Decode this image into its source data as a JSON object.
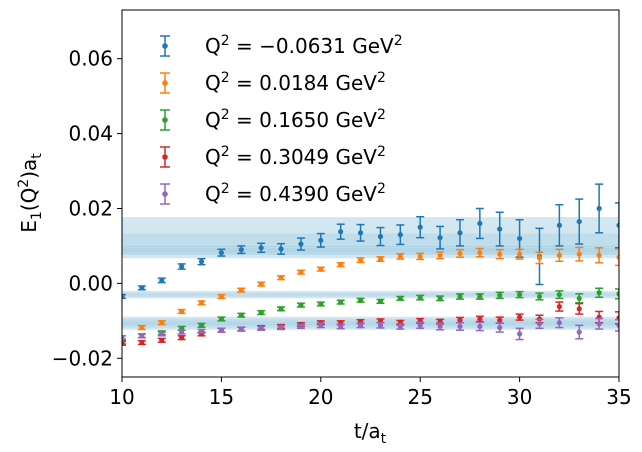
{
  "chart_data": {
    "type": "scatter",
    "title": "",
    "xlabel": "t/a",
    "xlabel_sub": "t",
    "ylabel": "E",
    "ylabel_sub": "1",
    "ylabel_paren": "(Q",
    "ylabel_sup": "2",
    "ylabel_close": ")a",
    "ylabel_sub2": "t",
    "xlim": [
      10,
      35
    ],
    "ylim": [
      -0.025,
      0.073
    ],
    "xticks": [
      10,
      15,
      20,
      25,
      30,
      35
    ],
    "xtick_labels": [
      "10",
      "15",
      "20",
      "25",
      "30",
      "35"
    ],
    "yticks": [
      -0.02,
      0.0,
      0.02,
      0.04,
      0.06
    ],
    "ytick_labels": [
      "−0.02",
      "0.00",
      "0.02",
      "0.04",
      "0.06"
    ],
    "grid": false,
    "legend_position": "top-left",
    "series": [
      {
        "name": "Q² = −0.0631 GeV²",
        "legend_base": "Q",
        "legend_sup": "2",
        "legend_mid": " = −0.0631 GeV",
        "legend_sup2": "2",
        "color": "#1f77b4",
        "band_center": 0.0122,
        "band_halfwidth": 0.0055,
        "band_inner_center": 0.0115,
        "band_inner_halfwidth": 0.0018,
        "x": [
          10,
          11,
          12,
          13,
          14,
          15,
          16,
          17,
          18,
          19,
          20,
          21,
          22,
          23,
          24,
          25,
          26,
          27,
          28,
          29,
          30,
          31,
          32,
          33,
          34,
          35
        ],
        "y": [
          -0.0035,
          -0.0012,
          0.0008,
          0.0045,
          0.0058,
          0.0082,
          0.009,
          0.0095,
          0.0092,
          0.0105,
          0.0115,
          0.0138,
          0.0135,
          0.0125,
          0.013,
          0.015,
          0.0122,
          0.0135,
          0.016,
          0.0145,
          0.012,
          0.0072,
          0.0155,
          0.0165,
          0.02,
          0.0155
        ],
        "err": [
          0.0005,
          0.0005,
          0.0006,
          0.0007,
          0.0008,
          0.0009,
          0.001,
          0.0012,
          0.0014,
          0.0016,
          0.0018,
          0.002,
          0.0022,
          0.0024,
          0.0026,
          0.0028,
          0.003,
          0.0035,
          0.004,
          0.0045,
          0.005,
          0.0075,
          0.0055,
          0.006,
          0.0065,
          0.006
        ]
      },
      {
        "name": "Q² = 0.0184 GeV²",
        "legend_base": "Q",
        "legend_sup": "2",
        "legend_mid": " = 0.0184 GeV",
        "legend_sup2": "2",
        "color": "#ff7f0e",
        "band_center": 0.0088,
        "band_halfwidth": 0.0012,
        "band_inner_center": 0.0088,
        "band_inner_halfwidth": 0.0006,
        "x": [
          10,
          11,
          12,
          13,
          14,
          15,
          16,
          17,
          18,
          19,
          20,
          21,
          22,
          23,
          24,
          25,
          26,
          27,
          28,
          29,
          30,
          31,
          32,
          33,
          34,
          35
        ],
        "y": [
          -0.0155,
          -0.0118,
          -0.0105,
          -0.0075,
          -0.0052,
          -0.0035,
          -0.0018,
          -0.0002,
          0.0015,
          0.003,
          0.0038,
          0.005,
          0.0062,
          0.0065,
          0.0072,
          0.0072,
          0.0075,
          0.008,
          0.0082,
          0.0078,
          0.0078,
          0.0068,
          0.0075,
          0.0078,
          0.0075,
          0.007
        ],
        "err": [
          0.0006,
          0.0005,
          0.0005,
          0.0005,
          0.0005,
          0.0005,
          0.0005,
          0.0005,
          0.0005,
          0.0005,
          0.0005,
          0.0005,
          0.0006,
          0.0006,
          0.0007,
          0.0008,
          0.0009,
          0.001,
          0.0011,
          0.0012,
          0.0013,
          0.0015,
          0.0016,
          0.0018,
          0.002,
          0.0022
        ]
      },
      {
        "name": "Q² = 0.1650 GeV²",
        "legend_base": "Q",
        "legend_sup": "2",
        "legend_mid": " = 0.1650 GeV",
        "legend_sup2": "2",
        "color": "#2ca02c",
        "band_center": -0.003,
        "band_halfwidth": 0.001,
        "band_inner_center": -0.003,
        "band_inner_halfwidth": 0.0005,
        "x": [
          10,
          11,
          12,
          13,
          14,
          15,
          16,
          17,
          18,
          19,
          20,
          21,
          22,
          23,
          24,
          25,
          26,
          27,
          28,
          29,
          30,
          31,
          32,
          33,
          34,
          35
        ],
        "y": [
          -0.0158,
          -0.014,
          -0.0132,
          -0.012,
          -0.0112,
          -0.0095,
          -0.0085,
          -0.0078,
          -0.0068,
          -0.0058,
          -0.0055,
          -0.005,
          -0.0045,
          -0.0048,
          -0.004,
          -0.0038,
          -0.004,
          -0.0035,
          -0.0035,
          -0.0032,
          -0.003,
          -0.0035,
          -0.003,
          -0.004,
          -0.0025,
          -0.0028
        ],
        "err": [
          0.0005,
          0.0005,
          0.0005,
          0.0005,
          0.0005,
          0.0005,
          0.0005,
          0.0005,
          0.0005,
          0.0005,
          0.0005,
          0.0005,
          0.0005,
          0.0005,
          0.0005,
          0.0006,
          0.0006,
          0.0007,
          0.0007,
          0.0008,
          0.0008,
          0.0009,
          0.001,
          0.0012,
          0.0012,
          0.0013
        ]
      },
      {
        "name": "Q² = 0.3049 GeV²",
        "legend_base": "Q",
        "legend_sup": "2",
        "legend_mid": " = 0.3049 GeV",
        "legend_sup2": "2",
        "color": "#d62728",
        "band_center": -0.01,
        "band_halfwidth": 0.0011,
        "band_inner_center": -0.01,
        "band_inner_halfwidth": 0.0005,
        "x": [
          10,
          11,
          12,
          13,
          14,
          15,
          16,
          17,
          18,
          19,
          20,
          21,
          22,
          23,
          24,
          25,
          26,
          27,
          28,
          29,
          30,
          31,
          32,
          33,
          34,
          35
        ],
        "y": [
          -0.016,
          -0.0158,
          -0.0152,
          -0.0145,
          -0.0135,
          -0.0125,
          -0.0122,
          -0.0118,
          -0.0115,
          -0.011,
          -0.0105,
          -0.0105,
          -0.0102,
          -0.01,
          -0.0105,
          -0.01,
          -0.0102,
          -0.0098,
          -0.0095,
          -0.0098,
          -0.009,
          -0.0095,
          -0.0062,
          -0.0068,
          -0.009,
          -0.0092
        ],
        "err": [
          0.0005,
          0.0005,
          0.0005,
          0.0005,
          0.0005,
          0.0005,
          0.0005,
          0.0005,
          0.0005,
          0.0005,
          0.0005,
          0.0005,
          0.0005,
          0.0005,
          0.0006,
          0.0006,
          0.0006,
          0.0007,
          0.0007,
          0.0008,
          0.0008,
          0.001,
          0.0012,
          0.0014,
          0.0015,
          0.0016
        ]
      },
      {
        "name": "Q² = 0.4390 GeV²",
        "legend_base": "Q",
        "legend_sup": "2",
        "legend_mid": " = 0.4390 GeV",
        "legend_sup2": "2",
        "color": "#9467bd",
        "band_center": -0.0113,
        "band_halfwidth": 0.0011,
        "band_inner_center": -0.0113,
        "band_inner_halfwidth": 0.0005,
        "x": [
          10,
          11,
          12,
          13,
          14,
          15,
          16,
          17,
          18,
          19,
          20,
          21,
          22,
          23,
          24,
          25,
          26,
          27,
          28,
          29,
          30,
          31,
          32,
          33,
          34,
          35
        ],
        "y": [
          -0.0145,
          -0.014,
          -0.0135,
          -0.013,
          -0.0128,
          -0.0125,
          -0.0122,
          -0.012,
          -0.0118,
          -0.0115,
          -0.0112,
          -0.0115,
          -0.0112,
          -0.0112,
          -0.0115,
          -0.0112,
          -0.0115,
          -0.0115,
          -0.0115,
          -0.0118,
          -0.0135,
          -0.0108,
          -0.0105,
          -0.013,
          -0.0108,
          -0.0112
        ],
        "err": [
          0.0005,
          0.0005,
          0.0005,
          0.0005,
          0.0005,
          0.0005,
          0.0005,
          0.0005,
          0.0005,
          0.0005,
          0.0006,
          0.0006,
          0.0006,
          0.0007,
          0.0007,
          0.0008,
          0.0009,
          0.001,
          0.0011,
          0.0012,
          0.0015,
          0.0012,
          0.0013,
          0.0018,
          0.0014,
          0.0015
        ]
      }
    ]
  }
}
